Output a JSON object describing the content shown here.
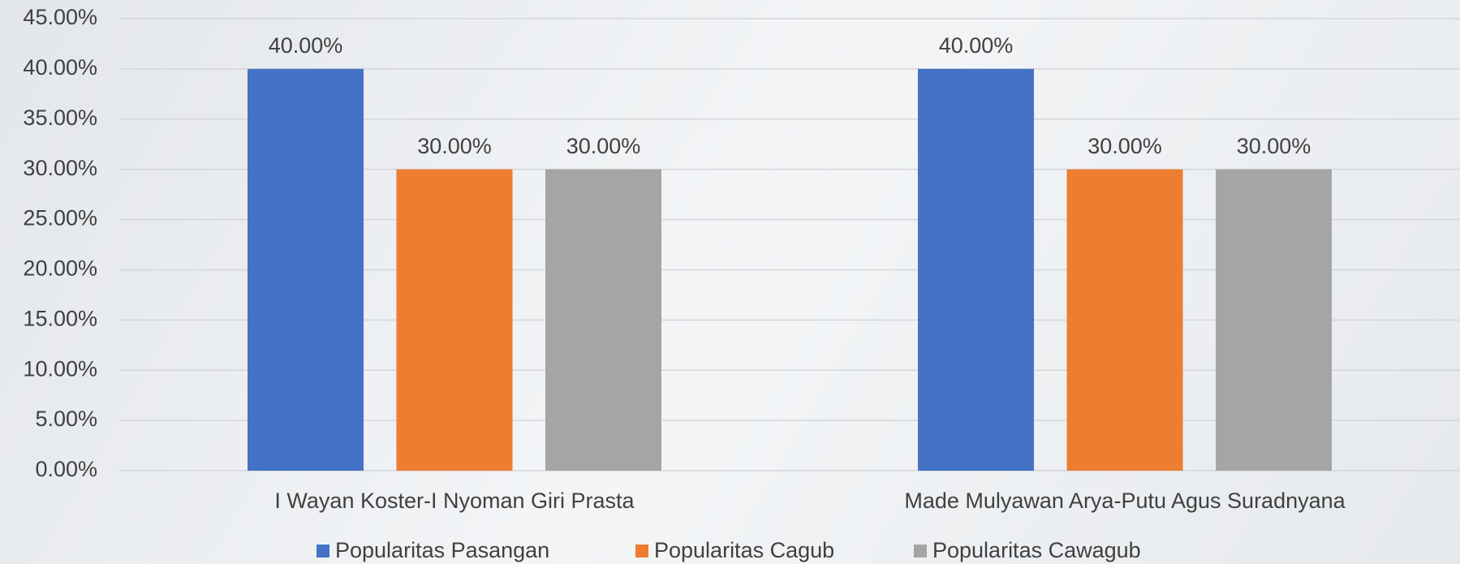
{
  "chart_data": {
    "type": "bar",
    "categories": [
      "I Wayan Koster-I Nyoman Giri Prasta",
      "Made Mulyawan Arya-Putu Agus Suradnyana"
    ],
    "series": [
      {
        "name": "Popularitas Pasangan",
        "color": "#4472c4",
        "values": [
          40,
          40
        ],
        "value_labels": [
          "40.00%",
          "40.00%"
        ]
      },
      {
        "name": "Popularitas Cagub",
        "color": "#ed7d31",
        "values": [
          30,
          30
        ],
        "value_labels": [
          "30.00%",
          "30.00%"
        ]
      },
      {
        "name": "Popularitas Cawagub",
        "color": "#a5a5a5",
        "values": [
          30,
          30
        ],
        "value_labels": [
          "30.00%",
          "30.00%"
        ]
      }
    ],
    "ylim": [
      0,
      45
    ],
    "yticks": [
      {
        "value": 0,
        "label": "0.00%"
      },
      {
        "value": 5,
        "label": "5.00%"
      },
      {
        "value": 10,
        "label": "10.00%"
      },
      {
        "value": 15,
        "label": "15.00%"
      },
      {
        "value": 20,
        "label": "20.00%"
      },
      {
        "value": 25,
        "label": "25.00%"
      },
      {
        "value": 30,
        "label": "30.00%"
      },
      {
        "value": 35,
        "label": "35.00%"
      },
      {
        "value": 40,
        "label": "40.00%"
      },
      {
        "value": 45,
        "label": "45.00%"
      }
    ],
    "grid": true,
    "legend": "bottom"
  }
}
